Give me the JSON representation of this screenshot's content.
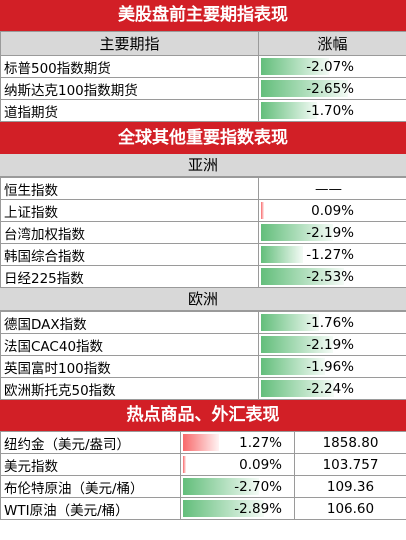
{
  "section1": {
    "title": "美股盘前主要期指表现",
    "col_name": "主要期指",
    "col_change": "涨幅",
    "rows": [
      {
        "name": "标普500指数期货",
        "change": "-2.07%",
        "level": -2.07
      },
      {
        "name": "纳斯达克100指数期货",
        "change": "-2.65%",
        "level": -2.65
      },
      {
        "name": "道指期货",
        "change": "-1.70%",
        "level": -1.7
      }
    ]
  },
  "section2": {
    "title": "全球其他重要指数表现",
    "asia": {
      "label": "亚洲",
      "rows": [
        {
          "name": "恒生指数",
          "change": "——",
          "level": 0
        },
        {
          "name": "上证指数",
          "change": "0.09%",
          "level": 0.09
        },
        {
          "name": "台湾加权指数",
          "change": "-2.19%",
          "level": -2.19
        },
        {
          "name": "韩国综合指数",
          "change": "-1.27%",
          "level": -1.27
        },
        {
          "name": "日经225指数",
          "change": "-2.53%",
          "level": -2.53
        }
      ]
    },
    "europe": {
      "label": "欧洲",
      "rows": [
        {
          "name": "德国DAX指数",
          "change": "-1.76%",
          "level": -1.76
        },
        {
          "name": "法国CAC40指数",
          "change": "-2.19%",
          "level": -2.19
        },
        {
          "name": "英国富时100指数",
          "change": "-1.96%",
          "level": -1.96
        },
        {
          "name": "欧洲斯托克50指数",
          "change": "-2.24%",
          "level": -2.24
        }
      ]
    }
  },
  "section3": {
    "title": "热点商品、外汇表现",
    "rows": [
      {
        "name": "纽约金（美元/盎司）",
        "change": "1.27%",
        "price": "1858.80",
        "level": 1.27
      },
      {
        "name": "美元指数",
        "change": "0.09%",
        "price": "103.757",
        "level": 0.09
      },
      {
        "name": "布伦特原油（美元/桶）",
        "change": "-2.70%",
        "price": "109.36",
        "level": -2.7
      },
      {
        "name": "WTI原油（美元/桶）",
        "change": "-2.89%",
        "price": "106.60",
        "level": -2.89
      }
    ]
  },
  "colors": {
    "banner_red": "#d21f26",
    "header_gray": "#d8d8d8",
    "negative_bar": "#63be7b",
    "positive_bar": "#f8696b"
  }
}
